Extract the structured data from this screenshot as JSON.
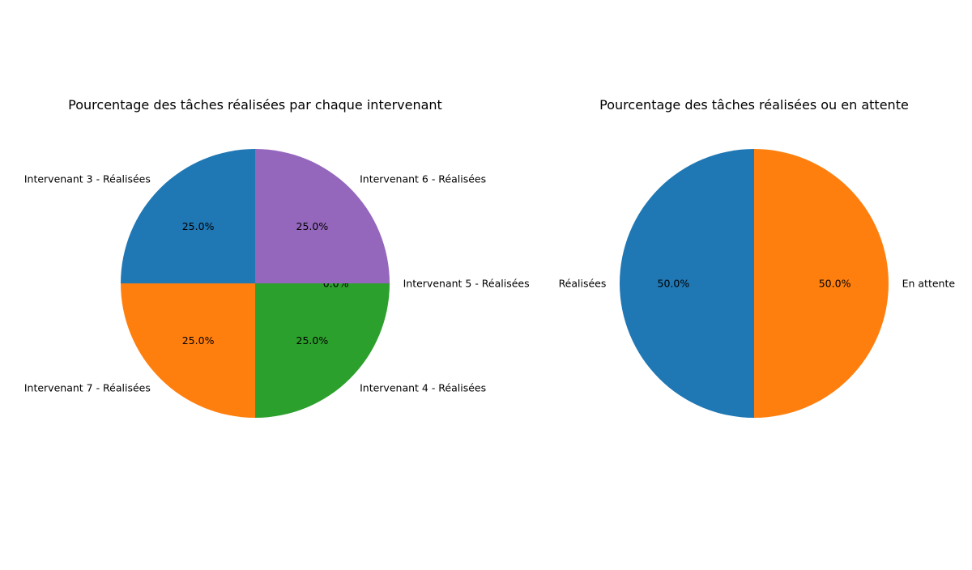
{
  "chart_data": [
    {
      "type": "pie",
      "title": "Pourcentage des tâches réalisées par chaque intervenant",
      "slices": [
        {
          "label": "Intervenant 3 - Réalisées",
          "value": 25.0,
          "pct_label": "25.0%",
          "color": "#1f77b4"
        },
        {
          "label": "Intervenant 7 - Réalisées",
          "value": 25.0,
          "pct_label": "25.0%",
          "color": "#ff7f0e"
        },
        {
          "label": "Intervenant 4 - Réalisées",
          "value": 25.0,
          "pct_label": "25.0%",
          "color": "#2ca02c"
        },
        {
          "label": "Intervenant 5 - Réalisées",
          "value": 0.0,
          "pct_label": "0.0%",
          "color": "#d62728"
        },
        {
          "label": "Intervenant 6 - Réalisées",
          "value": 25.0,
          "pct_label": "25.0%",
          "color": "#9467bd"
        }
      ],
      "start_angle_deg": 90,
      "direction": "counterclockwise"
    },
    {
      "type": "pie",
      "title": "Pourcentage des tâches réalisées ou en attente",
      "slices": [
        {
          "label": "Réalisées",
          "value": 50.0,
          "pct_label": "50.0%",
          "color": "#1f77b4"
        },
        {
          "label": "En attente",
          "value": 50.0,
          "pct_label": "50.0%",
          "color": "#ff7f0e"
        }
      ],
      "start_angle_deg": 90,
      "direction": "counterclockwise"
    }
  ]
}
